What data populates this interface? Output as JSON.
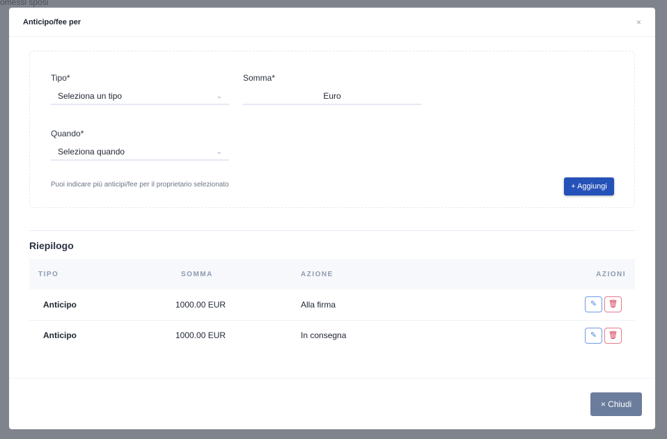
{
  "background": {
    "text": "omessi sposi"
  },
  "modal": {
    "title": "Anticipo/fee per",
    "close": "×"
  },
  "form": {
    "tipo_label": "Tipo*",
    "tipo_value": "Seleziona un tipo",
    "somma_label": "Somma*",
    "somma_placeholder": "Euro",
    "quando_label": "Quando*",
    "quando_value": "Seleziona quando",
    "hint": "Puoi indicare più anticipi/fee per il proprietario selezionato",
    "add_label": "+ Aggiungi"
  },
  "summary": {
    "title": "Riepilogo",
    "columns": [
      "TIPO",
      "SOMMA",
      "AZIONE",
      "AZIONI"
    ],
    "rows": [
      {
        "tipo": "Anticipo",
        "somma": "1000.00 EUR",
        "azione": "Alla firma"
      },
      {
        "tipo": "Anticipo",
        "somma": "1000.00 EUR",
        "azione": "In consegna"
      }
    ]
  },
  "footer": {
    "close_label": "× Chiudi"
  }
}
